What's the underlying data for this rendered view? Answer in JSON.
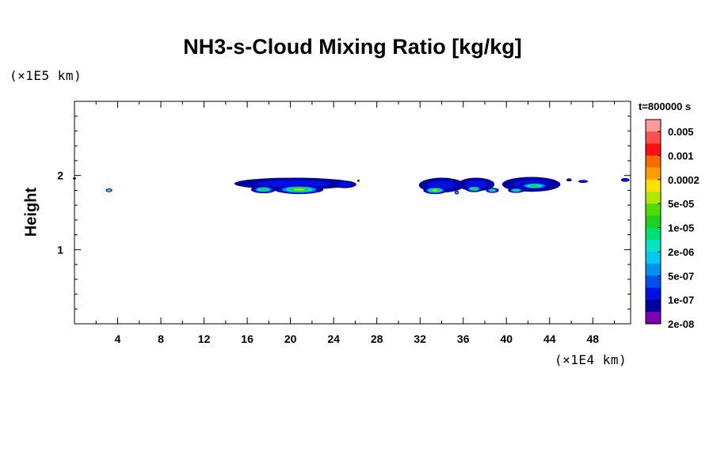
{
  "chart_data": {
    "type": "contour",
    "title": "NH3-s-Cloud Mixing Ratio [kg/kg]",
    "ylabel": "Height",
    "y_unit_label": "(×1E5 km)",
    "x_unit_label": "(×1E4 km)",
    "time_label": "t=800000 s",
    "xlim": [
      0,
      51.5
    ],
    "ylim": [
      0,
      3
    ],
    "x_ticks": [
      4,
      8,
      12,
      16,
      20,
      24,
      28,
      32,
      36,
      40,
      44,
      48
    ],
    "y_ticks": [
      1,
      2
    ],
    "x_minor_step": 2,
    "y_minor_step": 0.2,
    "colorbar": {
      "labels": [
        "0.005",
        "0.001",
        "0.0002",
        "5e-05",
        "1e-05",
        "2e-06",
        "5e-07",
        "1e-07",
        "2e-08"
      ],
      "colors_top_to_bottom": [
        "#ff9a9a",
        "#ff5050",
        "#ff1010",
        "#ff6a00",
        "#ffa000",
        "#ffe000",
        "#b0e800",
        "#50dc00",
        "#20d020",
        "#00e070",
        "#00e6c0",
        "#00c8f0",
        "#0090f0",
        "#0050f0",
        "#0010e0",
        "#0000a0",
        "#7a00b0"
      ]
    },
    "cloud_features": [
      {
        "x_center": 0.0,
        "y": 1.96,
        "width": 0.3,
        "height": 0.03,
        "level": 1
      },
      {
        "x_center": 3.2,
        "y": 1.8,
        "width": 0.6,
        "height": 0.05,
        "level": 5
      },
      {
        "x_center": 20.3,
        "y": 1.89,
        "width": 11.0,
        "height": 0.16,
        "level": 1
      },
      {
        "x_center": 25.0,
        "y": 1.88,
        "width": 2.2,
        "height": 0.1,
        "level": 1
      },
      {
        "x_center": 26.3,
        "y": 1.93,
        "width": 0.2,
        "height": 0.03,
        "level": 0
      },
      {
        "x_center": 34.0,
        "y": 1.87,
        "width": 4.2,
        "height": 0.2,
        "level": 1
      },
      {
        "x_center": 37.2,
        "y": 1.88,
        "width": 3.4,
        "height": 0.18,
        "level": 1
      },
      {
        "x_center": 42.3,
        "y": 1.88,
        "width": 5.4,
        "height": 0.2,
        "level": 1
      },
      {
        "x_center": 45.8,
        "y": 1.94,
        "width": 0.5,
        "height": 0.04,
        "level": 0
      },
      {
        "x_center": 47.1,
        "y": 1.92,
        "width": 0.9,
        "height": 0.04,
        "level": 1
      },
      {
        "x_center": 51.0,
        "y": 1.94,
        "width": 0.8,
        "height": 0.05,
        "level": 1
      }
    ],
    "cloud_cores": [
      {
        "x_center": 17.5,
        "y": 1.81,
        "width": 2.3,
        "height": 0.1,
        "level": 4
      },
      {
        "x_center": 20.8,
        "y": 1.81,
        "width": 4.5,
        "height": 0.12,
        "level": 5
      },
      {
        "x_center": 33.4,
        "y": 1.8,
        "width": 2.2,
        "height": 0.1,
        "level": 5
      },
      {
        "x_center": 35.4,
        "y": 1.77,
        "width": 0.4,
        "height": 0.05,
        "level": 3
      },
      {
        "x_center": 37.0,
        "y": 1.82,
        "width": 1.6,
        "height": 0.09,
        "level": 4
      },
      {
        "x_center": 38.7,
        "y": 1.8,
        "width": 1.2,
        "height": 0.07,
        "level": 4
      },
      {
        "x_center": 40.9,
        "y": 1.8,
        "width": 1.5,
        "height": 0.07,
        "level": 4
      },
      {
        "x_center": 42.6,
        "y": 1.86,
        "width": 3.0,
        "height": 0.1,
        "level": 4
      }
    ]
  }
}
